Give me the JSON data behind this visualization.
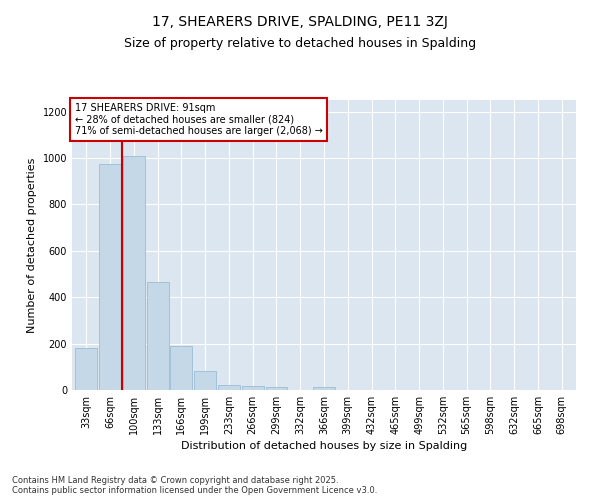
{
  "title_line1": "17, SHEARERS DRIVE, SPALDING, PE11 3ZJ",
  "title_line2": "Size of property relative to detached houses in Spalding",
  "xlabel": "Distribution of detached houses by size in Spalding",
  "ylabel": "Number of detached properties",
  "bins": [
    "33sqm",
    "66sqm",
    "100sqm",
    "133sqm",
    "166sqm",
    "199sqm",
    "233sqm",
    "266sqm",
    "299sqm",
    "332sqm",
    "366sqm",
    "399sqm",
    "432sqm",
    "465sqm",
    "499sqm",
    "532sqm",
    "565sqm",
    "598sqm",
    "632sqm",
    "665sqm",
    "698sqm"
  ],
  "values": [
    180,
    975,
    1010,
    465,
    190,
    80,
    22,
    17,
    12,
    0,
    12,
    0,
    0,
    0,
    0,
    0,
    0,
    0,
    0,
    0,
    0
  ],
  "bar_color": "#c5d8e8",
  "bar_edge_color": "#9bbdd4",
  "vline_color": "#cc0000",
  "vline_x": 1.5,
  "ylim": [
    0,
    1250
  ],
  "yticks": [
    0,
    200,
    400,
    600,
    800,
    1000,
    1200
  ],
  "annotation_text": "17 SHEARERS DRIVE: 91sqm\n← 28% of detached houses are smaller (824)\n71% of semi-detached houses are larger (2,068) →",
  "annotation_box_edgecolor": "#cc0000",
  "bg_color": "#dce6f0",
  "fig_color": "#ffffff",
  "footnote": "Contains HM Land Registry data © Crown copyright and database right 2025.\nContains public sector information licensed under the Open Government Licence v3.0.",
  "title1_fontsize": 10,
  "title2_fontsize": 9,
  "ylabel_fontsize": 8,
  "xlabel_fontsize": 8,
  "tick_fontsize": 7,
  "annot_fontsize": 7,
  "footnote_fontsize": 6
}
